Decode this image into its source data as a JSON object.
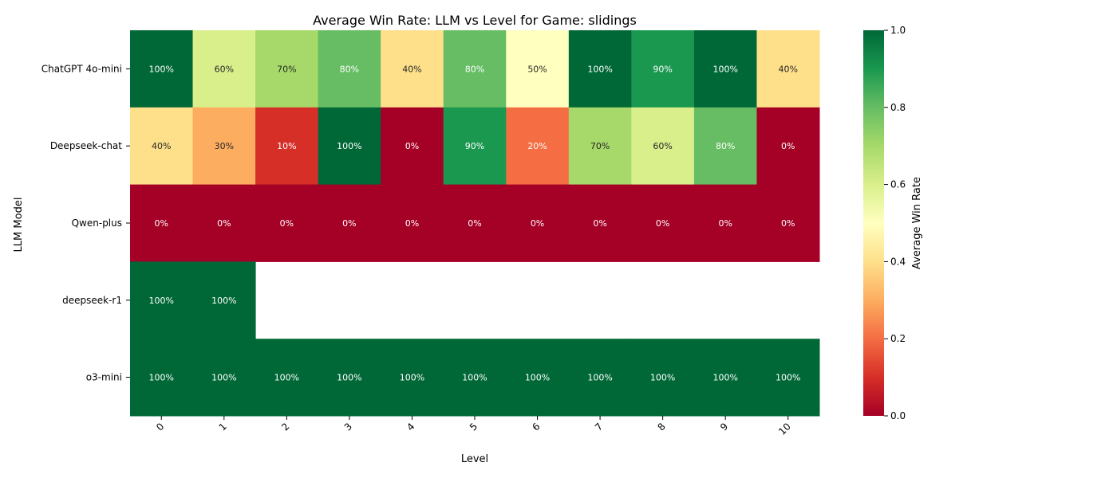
{
  "chart_data": {
    "type": "heatmap",
    "title": "Average Win Rate: LLM vs Level for Game: slidings",
    "xlabel": "Level",
    "ylabel": "LLM Model",
    "x_categories": [
      "0",
      "1",
      "2",
      "3",
      "4",
      "5",
      "6",
      "7",
      "8",
      "9",
      "10"
    ],
    "y_categories": [
      "ChatGPT 4o-mini",
      "Deepseek-chat",
      "Qwen-plus",
      "deepseek-r1",
      "o3-mini"
    ],
    "values": [
      [
        1.0,
        0.6,
        0.7,
        0.8,
        0.4,
        0.8,
        0.5,
        1.0,
        0.9,
        1.0,
        0.4
      ],
      [
        0.4,
        0.3,
        0.1,
        1.0,
        0.0,
        0.9,
        0.2,
        0.7,
        0.6,
        0.8,
        0.0
      ],
      [
        0.0,
        0.0,
        0.0,
        0.0,
        0.0,
        0.0,
        0.0,
        0.0,
        0.0,
        0.0,
        0.0
      ],
      [
        1.0,
        1.0,
        null,
        null,
        null,
        null,
        null,
        null,
        null,
        null,
        null
      ],
      [
        1.0,
        1.0,
        1.0,
        1.0,
        1.0,
        1.0,
        1.0,
        1.0,
        1.0,
        1.0,
        1.0
      ]
    ],
    "cell_labels": [
      [
        "100%",
        "60%",
        "70%",
        "80%",
        "40%",
        "80%",
        "50%",
        "100%",
        "90%",
        "100%",
        "40%"
      ],
      [
        "40%",
        "30%",
        "10%",
        "100%",
        "0%",
        "90%",
        "20%",
        "70%",
        "60%",
        "80%",
        "0%"
      ],
      [
        "0%",
        "0%",
        "0%",
        "0%",
        "0%",
        "0%",
        "0%",
        "0%",
        "0%",
        "0%",
        "0%"
      ],
      [
        "100%",
        "100%",
        "",
        "",
        "",
        "",
        "",
        "",
        "",
        "",
        ""
      ],
      [
        "100%",
        "100%",
        "100%",
        "100%",
        "100%",
        "100%",
        "100%",
        "100%",
        "100%",
        "100%",
        "100%"
      ]
    ],
    "colormap": "RdYlGn",
    "vmin": 0.0,
    "vmax": 1.0,
    "colorbar": {
      "label": "Average Win Rate",
      "ticks": [
        "0.0",
        "0.2",
        "0.4",
        "0.6",
        "0.8",
        "1.0"
      ]
    },
    "colors": {
      "0.0": "#a50026",
      "0.1": "#d62f27",
      "0.2": "#f46d43",
      "0.3": "#fdad60",
      "0.4": "#fee08b",
      "0.5": "#ffffbf",
      "0.6": "#d9ef8b",
      "0.7": "#a6d96a",
      "0.8": "#66bd63",
      "0.9": "#1a9850",
      "1.0": "#006837"
    }
  }
}
